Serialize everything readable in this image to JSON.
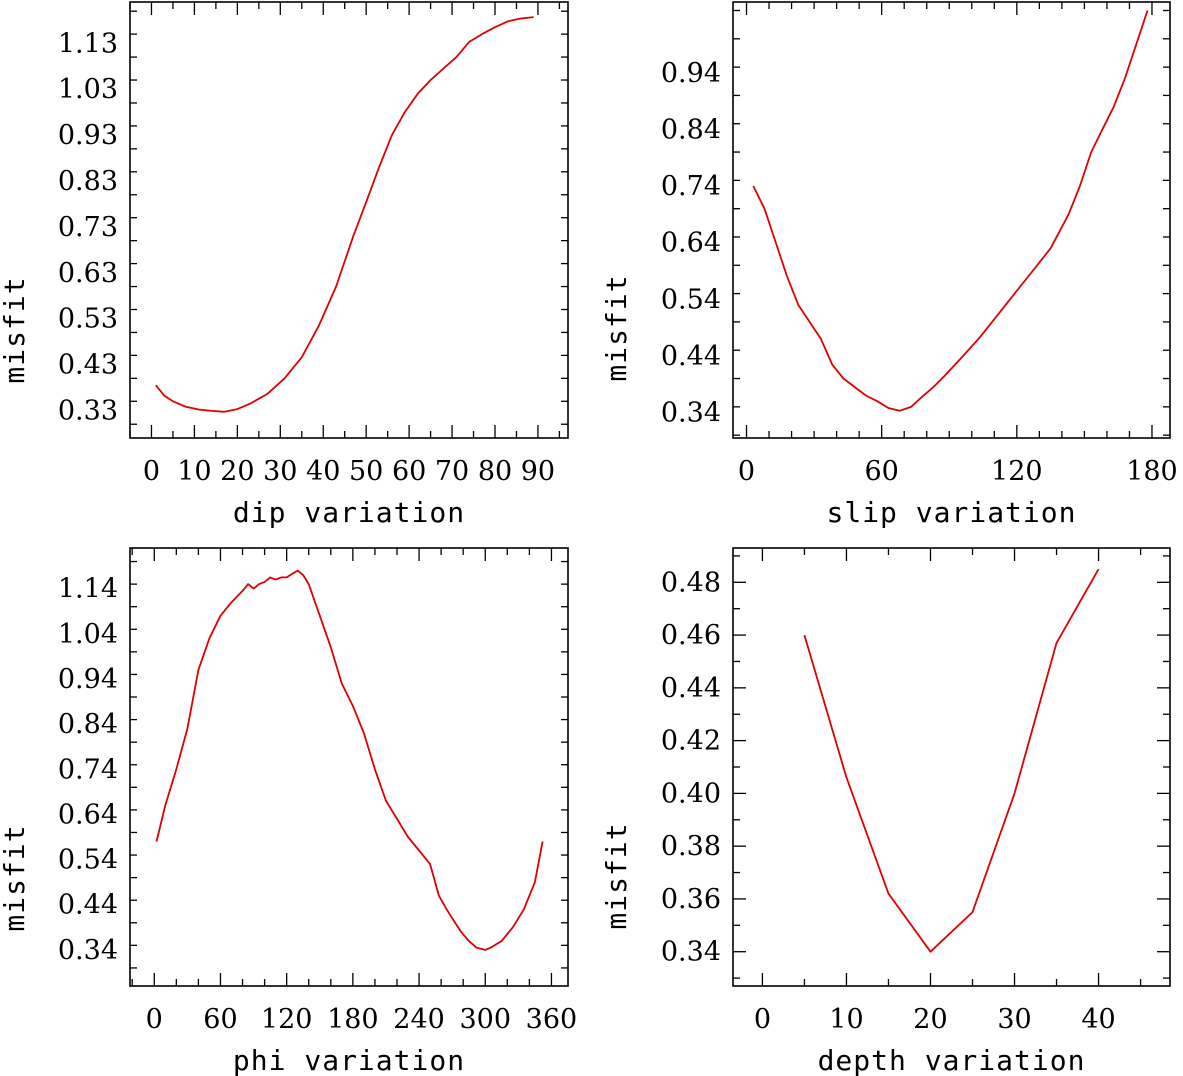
{
  "chart_data": [
    {
      "type": "line",
      "title": "",
      "xlabel": "dip    variation",
      "ylabel": "misfit",
      "xlim": [
        -5,
        97
      ],
      "ylim": [
        0.27,
        1.22
      ],
      "xticks": [
        0,
        10,
        20,
        30,
        40,
        50,
        60,
        70,
        80,
        90
      ],
      "xtick_labels": [
        "0",
        "10",
        "20",
        "30",
        "40",
        "50",
        "60",
        "70",
        "80",
        "90"
      ],
      "xminor": 5,
      "yticks": [
        0.33,
        0.43,
        0.53,
        0.63,
        0.73,
        0.83,
        0.93,
        1.03,
        1.13
      ],
      "ytick_labels": [
        "0.33",
        "0.43",
        "0.53",
        "0.63",
        "0.73",
        "0.83",
        "0.93",
        "1.03",
        "1.13"
      ],
      "yminor": 0.05,
      "series": [
        {
          "name": "dip",
          "color": "#e00000",
          "x": [
            1,
            3,
            5,
            8,
            11,
            14,
            17,
            20,
            23,
            27,
            31,
            35,
            39,
            43,
            47,
            50,
            53,
            56,
            59,
            62,
            65,
            68,
            71,
            74,
            77,
            80,
            83,
            86,
            89
          ],
          "y": [
            0.385,
            0.362,
            0.35,
            0.338,
            0.332,
            0.329,
            0.327,
            0.333,
            0.345,
            0.366,
            0.4,
            0.446,
            0.515,
            0.6,
            0.71,
            0.784,
            0.86,
            0.93,
            0.98,
            1.02,
            1.05,
            1.075,
            1.1,
            1.133,
            1.15,
            1.165,
            1.178,
            1.184,
            1.187
          ]
        }
      ]
    },
    {
      "type": "line",
      "title": "",
      "xlabel": "slip   variation",
      "ylabel": "misfit",
      "xlim": [
        -6,
        188
      ],
      "ylim": [
        0.295,
        1.065
      ],
      "xticks": [
        0,
        60,
        120,
        180
      ],
      "xtick_labels": [
        "0",
        "60",
        "120",
        "180"
      ],
      "xminor": 10,
      "yticks": [
        0.34,
        0.44,
        0.54,
        0.64,
        0.74,
        0.84,
        0.94
      ],
      "ytick_labels": [
        "0.34",
        "0.44",
        "0.54",
        "0.64",
        "0.74",
        "0.84",
        "0.94"
      ],
      "yminor": 0.05,
      "series": [
        {
          "name": "slip",
          "color": "#e00000",
          "x": [
            3,
            8,
            13,
            18,
            23,
            28,
            33,
            38,
            43,
            48,
            53,
            58,
            63,
            68,
            73,
            78,
            83,
            88,
            95,
            103,
            111,
            119,
            127,
            135,
            143,
            148,
            153,
            158,
            163,
            168,
            173,
            178
          ],
          "y": [
            0.74,
            0.7,
            0.64,
            0.58,
            0.53,
            0.5,
            0.47,
            0.425,
            0.4,
            0.385,
            0.37,
            0.36,
            0.348,
            0.343,
            0.35,
            0.368,
            0.385,
            0.405,
            0.435,
            0.47,
            0.51,
            0.55,
            0.59,
            0.63,
            0.69,
            0.74,
            0.8,
            0.84,
            0.88,
            0.93,
            0.99,
            1.05
          ]
        }
      ]
    },
    {
      "type": "line",
      "title": "",
      "xlabel": "phi    variation",
      "ylabel": "misfit",
      "xlim": [
        -22,
        375
      ],
      "ylim": [
        0.26,
        1.23
      ],
      "xticks": [
        0,
        60,
        120,
        180,
        240,
        300,
        360
      ],
      "xtick_labels": [
        "0",
        "60",
        "120",
        "180",
        "240",
        "300",
        "360"
      ],
      "xminor": 20,
      "yticks": [
        0.34,
        0.44,
        0.54,
        0.64,
        0.74,
        0.84,
        0.94,
        1.04,
        1.14
      ],
      "ytick_labels": [
        "0.34",
        "0.44",
        "0.54",
        "0.64",
        "0.74",
        "0.84",
        "0.94",
        "1.04",
        "1.14"
      ],
      "yminor": 0.05,
      "series": [
        {
          "name": "phi",
          "color": "#e00000",
          "x": [
            2,
            10,
            20,
            30,
            40,
            50,
            60,
            70,
            80,
            85,
            90,
            95,
            100,
            105,
            110,
            115,
            120,
            125,
            130,
            135,
            140,
            150,
            160,
            170,
            180,
            190,
            200,
            210,
            220,
            230,
            240,
            250,
            258,
            265,
            270,
            278,
            285,
            292,
            300,
            305,
            315,
            325,
            335,
            345,
            352
          ],
          "y": [
            0.58,
            0.66,
            0.74,
            0.83,
            0.96,
            1.03,
            1.08,
            1.11,
            1.135,
            1.15,
            1.14,
            1.15,
            1.155,
            1.165,
            1.16,
            1.165,
            1.165,
            1.173,
            1.18,
            1.17,
            1.15,
            1.08,
            1.01,
            0.93,
            0.88,
            0.82,
            0.74,
            0.67,
            0.63,
            0.59,
            0.56,
            0.53,
            0.46,
            0.43,
            0.41,
            0.38,
            0.36,
            0.345,
            0.34,
            0.345,
            0.36,
            0.39,
            0.43,
            0.49,
            0.58
          ]
        }
      ]
    },
    {
      "type": "line",
      "title": "",
      "xlabel": "depth  variation",
      "ylabel": "misfit",
      "xlim": [
        -3.5,
        48.5
      ],
      "ylim": [
        0.327,
        0.493
      ],
      "xticks": [
        0,
        10,
        20,
        30,
        40
      ],
      "xtick_labels": [
        "0",
        "10",
        "20",
        "30",
        "40"
      ],
      "xminor": 5,
      "yticks": [
        0.34,
        0.36,
        0.38,
        0.4,
        0.42,
        0.44,
        0.46,
        0.48
      ],
      "ytick_labels": [
        "0.34",
        "0.36",
        "0.38",
        "0.40",
        "0.42",
        "0.44",
        "0.46",
        "0.48"
      ],
      "yminor": 0.01,
      "series": [
        {
          "name": "depth",
          "color": "#e00000",
          "x": [
            5,
            10,
            15,
            20,
            25,
            30,
            35,
            40
          ],
          "y": [
            0.46,
            0.406,
            0.362,
            0.34,
            0.355,
            0.4,
            0.457,
            0.485
          ]
        }
      ]
    }
  ]
}
